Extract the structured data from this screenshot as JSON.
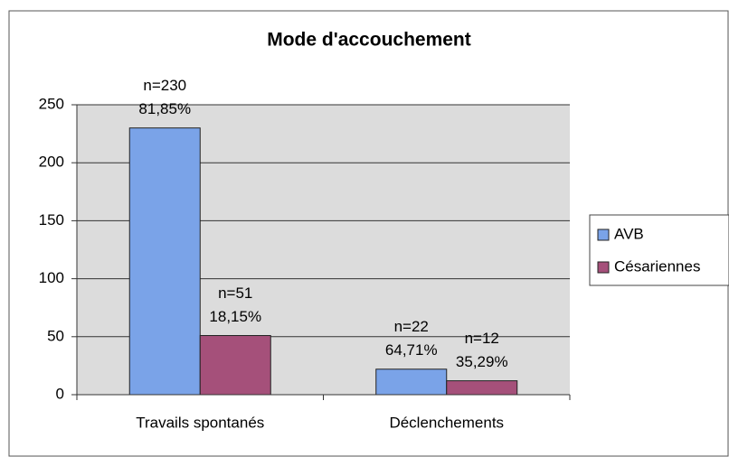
{
  "chart_data": {
    "type": "bar",
    "title": "Mode d'accouchement",
    "categories": [
      "Travails spontanés",
      "Déclenchements"
    ],
    "series": [
      {
        "name": "AVB",
        "color": "#7aa3e8",
        "values": [
          230,
          22
        ],
        "value_labels": [
          "n=230",
          "n=22"
        ],
        "percent_labels": [
          "81,85%",
          "64,71%"
        ]
      },
      {
        "name": "Césariennes",
        "color": "#a5507a",
        "values": [
          51,
          12
        ],
        "value_labels": [
          "n=51",
          "n=12"
        ],
        "percent_labels": [
          "18,15%",
          "35,29%"
        ]
      }
    ],
    "ylim": [
      0,
      250
    ],
    "yticks": [
      0,
      50,
      100,
      150,
      200,
      250
    ],
    "grid": true,
    "legend": "right"
  }
}
